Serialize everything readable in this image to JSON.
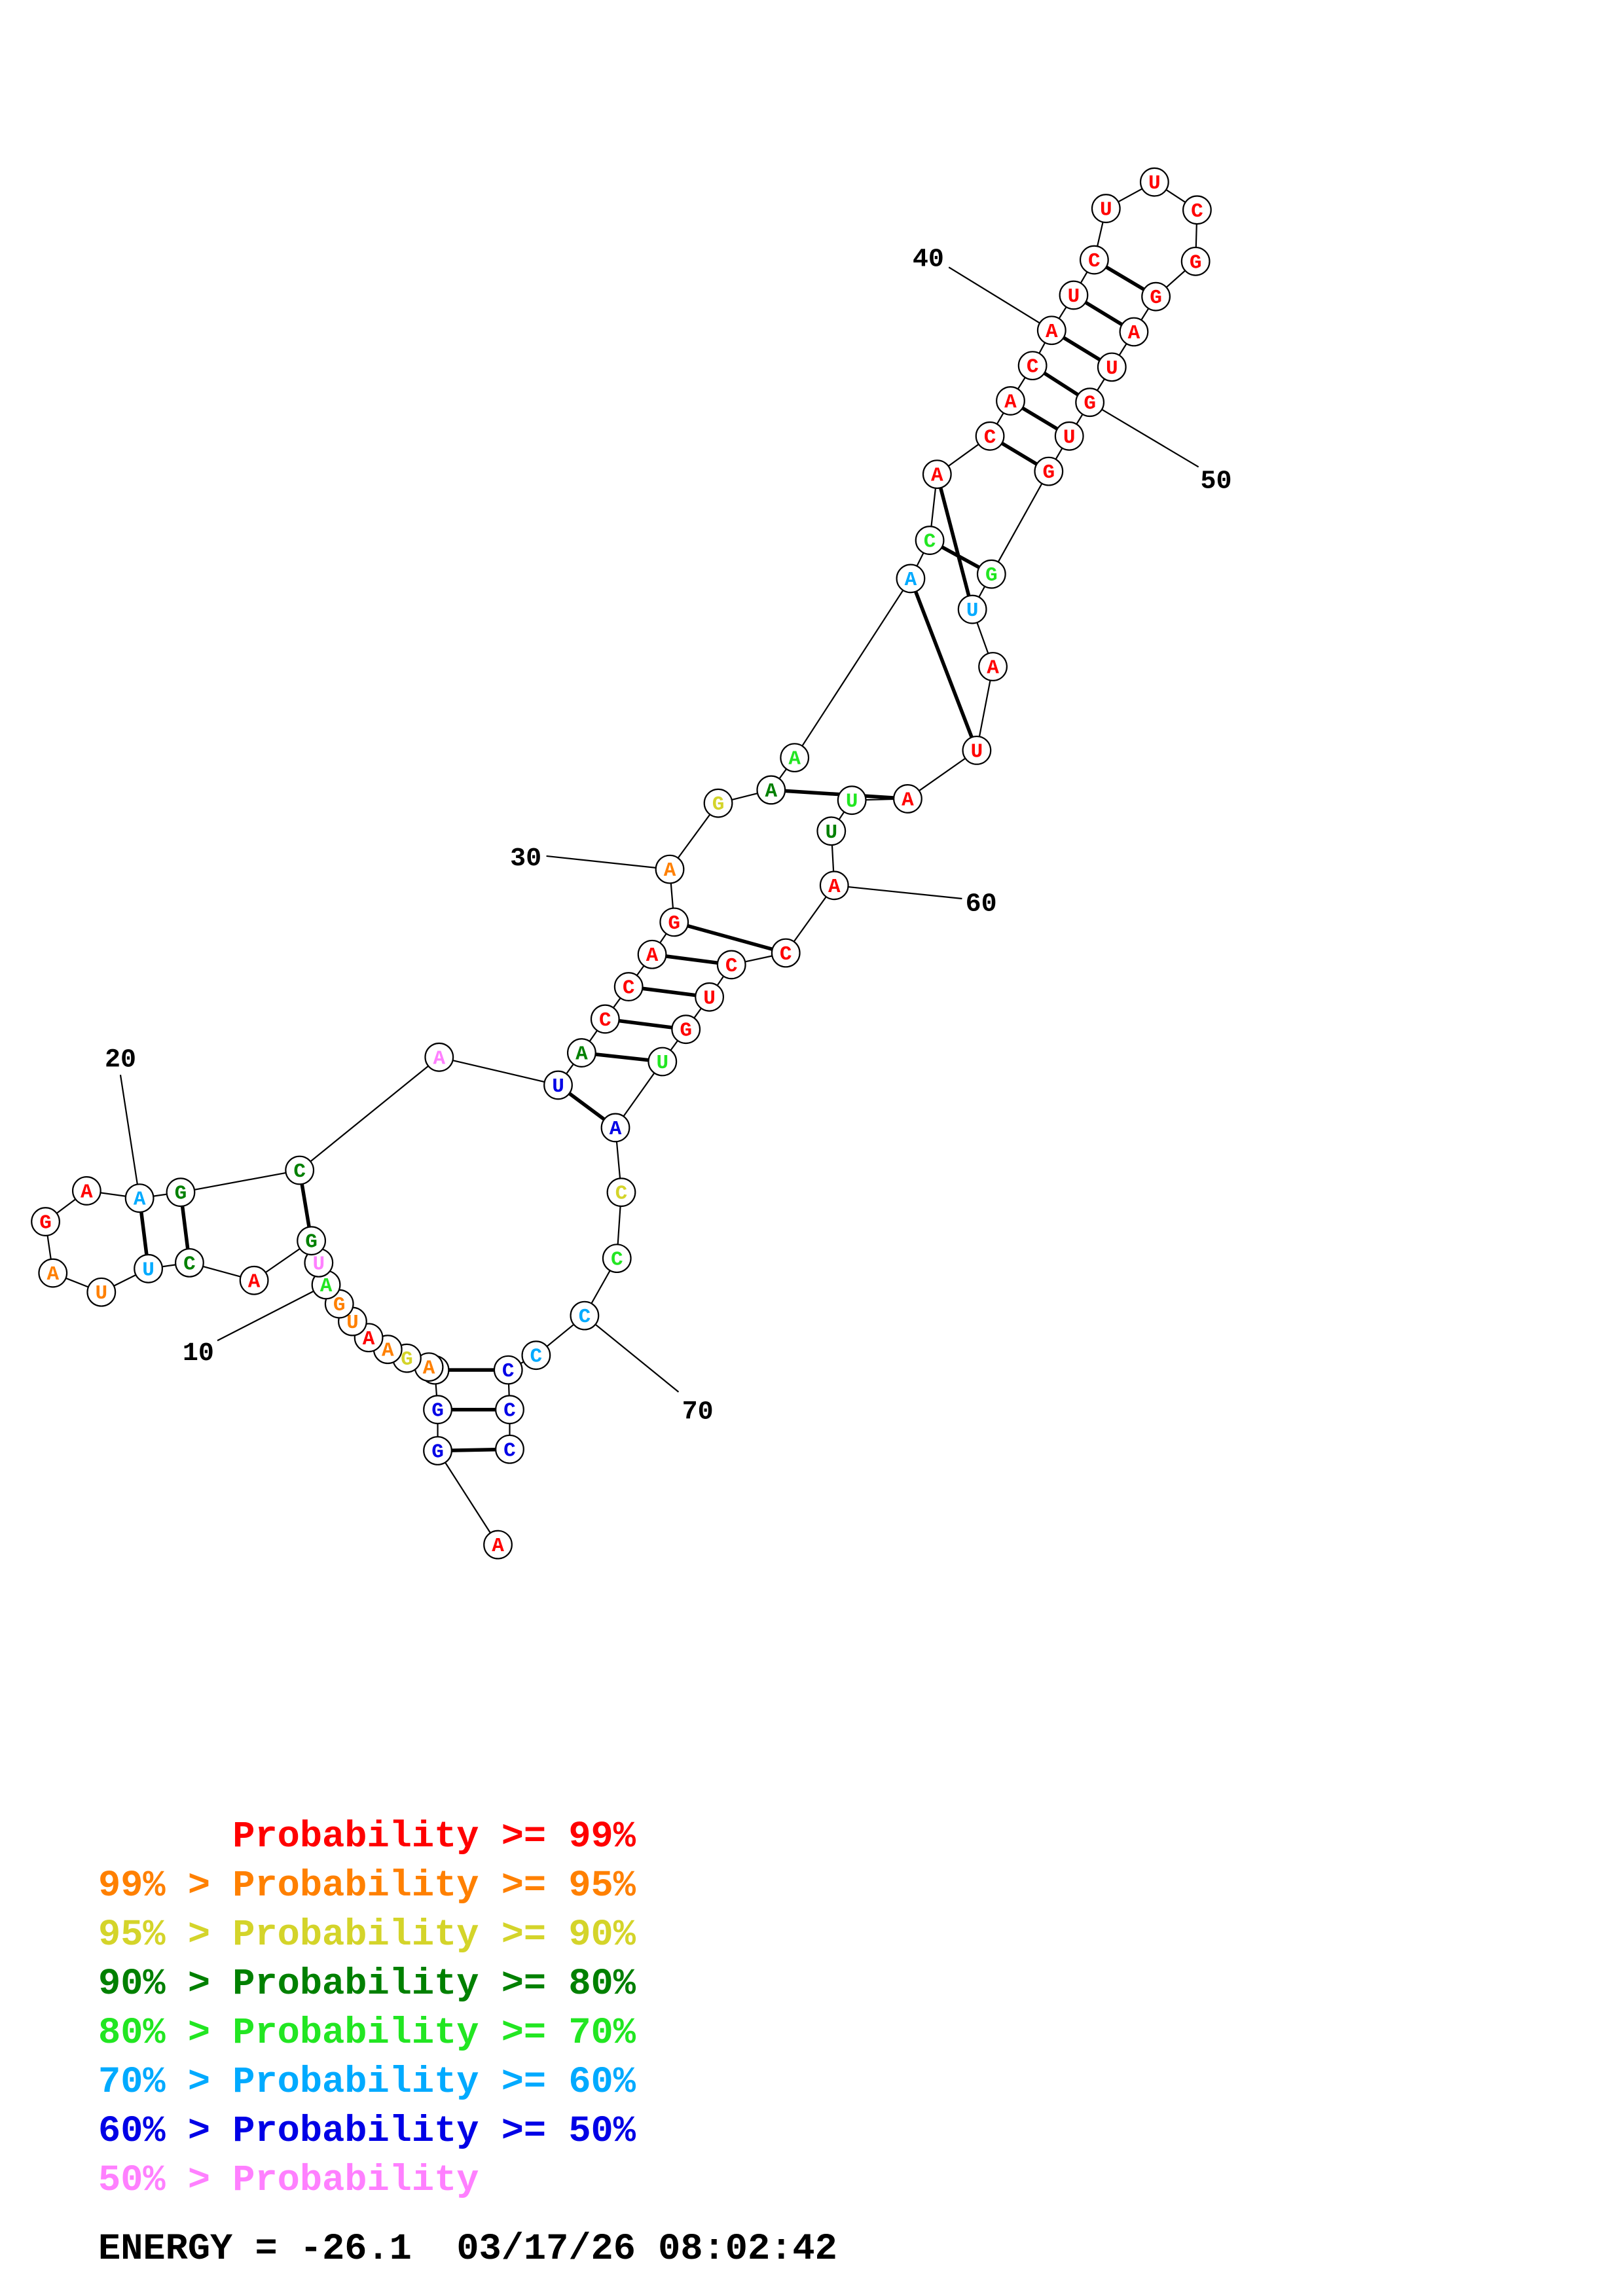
{
  "colors": {
    "p99": "#ff0000",
    "p95": "#ff8000",
    "p90": "#d4d42a",
    "p80": "#008000",
    "p70": "#22e622",
    "p60": "#00aaff",
    "p50": "#0000e6",
    "plow": "#ff80ff"
  },
  "nucleotides": [
    {
      "i": 1,
      "b": "A",
      "c": "p99"
    },
    {
      "i": 2,
      "b": "G",
      "c": "p50"
    },
    {
      "i": 3,
      "b": "G",
      "c": "p50"
    },
    {
      "i": 4,
      "b": "U",
      "c": "p50"
    },
    {
      "i": 5,
      "b": "A",
      "c": "p95"
    },
    {
      "i": 6,
      "b": "G",
      "c": "p90"
    },
    {
      "i": 7,
      "b": "A",
      "c": "p95"
    },
    {
      "i": 8,
      "b": "A",
      "c": "p99"
    },
    {
      "i": 9,
      "b": "U",
      "c": "p95"
    },
    {
      "i": 10,
      "b": "G",
      "c": "p95"
    },
    {
      "i": 11,
      "b": "A",
      "c": "p70"
    },
    {
      "i": 12,
      "b": "U",
      "c": "plow"
    },
    {
      "i": 13,
      "b": "G",
      "c": "p80"
    },
    {
      "i": 14,
      "b": "A",
      "c": "p99"
    },
    {
      "i": 15,
      "b": "C",
      "c": "p80"
    },
    {
      "i": 16,
      "b": "U",
      "c": "p60"
    },
    {
      "i": 17,
      "b": "U",
      "c": "p95"
    },
    {
      "i": 18,
      "b": "A",
      "c": "p95"
    },
    {
      "i": 19,
      "b": "G",
      "c": "p99"
    },
    {
      "i": 20,
      "b": "A",
      "c": "p99"
    },
    {
      "i": 21,
      "b": "A",
      "c": "p60"
    },
    {
      "i": 22,
      "b": "G",
      "c": "p80"
    },
    {
      "i": 23,
      "b": "C",
      "c": "p80"
    },
    {
      "i": 24,
      "b": "A",
      "c": "plow"
    },
    {
      "i": 25,
      "b": "U",
      "c": "p50"
    },
    {
      "i": 26,
      "b": "A",
      "c": "p80"
    },
    {
      "i": 27,
      "b": "C",
      "c": "p99"
    },
    {
      "i": 28,
      "b": "C",
      "c": "p99"
    },
    {
      "i": 29,
      "b": "A",
      "c": "p99"
    },
    {
      "i": 30,
      "b": "G",
      "c": "p99"
    },
    {
      "i": 31,
      "b": "A",
      "c": "p95"
    },
    {
      "i": 32,
      "b": "G",
      "c": "p90"
    },
    {
      "i": 33,
      "b": "A",
      "c": "p80"
    },
    {
      "i": 34,
      "b": "A",
      "c": "p70"
    },
    {
      "i": 35,
      "b": "A",
      "c": "p60"
    },
    {
      "i": 36,
      "b": "C",
      "c": "p70"
    },
    {
      "i": 37,
      "b": "A",
      "c": "p99"
    },
    {
      "i": 38,
      "b": "C",
      "c": "p99"
    },
    {
      "i": 39,
      "b": "A",
      "c": "p99"
    },
    {
      "i": 40,
      "b": "C",
      "c": "p99"
    },
    {
      "i": 41,
      "b": "A",
      "c": "p99"
    },
    {
      "i": 42,
      "b": "U",
      "c": "p99"
    },
    {
      "i": 43,
      "b": "C",
      "c": "p99"
    },
    {
      "i": 44,
      "b": "U",
      "c": "p99"
    },
    {
      "i": 45,
      "b": "U",
      "c": "p99"
    },
    {
      "i": 46,
      "b": "C",
      "c": "p99"
    },
    {
      "i": 47,
      "b": "G",
      "c": "p99"
    },
    {
      "i": 48,
      "b": "G",
      "c": "p99"
    },
    {
      "i": 49,
      "b": "A",
      "c": "p99"
    },
    {
      "i": 50,
      "b": "U",
      "c": "p99"
    },
    {
      "i": 51,
      "b": "G",
      "c": "p99"
    },
    {
      "i": 52,
      "b": "U",
      "c": "p99"
    },
    {
      "i": 53,
      "b": "G",
      "c": "p99"
    },
    {
      "i": 54,
      "b": "G",
      "c": "p70"
    },
    {
      "i": 55,
      "b": "U",
      "c": "p60"
    },
    {
      "i": 56,
      "b": "A",
      "c": "p99"
    },
    {
      "i": 57,
      "b": "U",
      "c": "p99"
    },
    {
      "i": 58,
      "b": "A",
      "c": "p99"
    },
    {
      "i": 59,
      "b": "U",
      "c": "p70"
    },
    {
      "i": 60,
      "b": "U",
      "c": "p80"
    },
    {
      "i": 61,
      "b": "A",
      "c": "p99"
    },
    {
      "i": 62,
      "b": "C",
      "c": "p99"
    },
    {
      "i": 63,
      "b": "C",
      "c": "p99"
    },
    {
      "i": 64,
      "b": "U",
      "c": "p99"
    },
    {
      "i": 65,
      "b": "G",
      "c": "p99"
    },
    {
      "i": 66,
      "b": "U",
      "c": "p70"
    },
    {
      "i": 67,
      "b": "A",
      "c": "p50"
    },
    {
      "i": 68,
      "b": "C",
      "c": "p90"
    },
    {
      "i": 69,
      "b": "C",
      "c": "p70"
    },
    {
      "i": 70,
      "b": "C",
      "c": "p60"
    },
    {
      "i": 71,
      "b": "C",
      "c": "p60"
    },
    {
      "i": 72,
      "b": "C",
      "c": "p50"
    },
    {
      "i": 73,
      "b": "C",
      "c": "p50"
    },
    {
      "i": 74,
      "b": "C",
      "c": "p50"
    }
  ],
  "pairs": [
    [
      2,
      74
    ],
    [
      3,
      73
    ],
    [
      4,
      72
    ],
    [
      13,
      23
    ],
    [
      16,
      21
    ],
    [
      22,
      15
    ],
    [
      25,
      67
    ],
    [
      26,
      66
    ],
    [
      27,
      65
    ],
    [
      28,
      64
    ],
    [
      29,
      63
    ],
    [
      30,
      62
    ],
    [
      35,
      57
    ],
    [
      33,
      58
    ],
    [
      36,
      54
    ],
    [
      37,
      55
    ],
    [
      38,
      53
    ],
    [
      39,
      52
    ],
    [
      40,
      51
    ],
    [
      41,
      50
    ],
    [
      42,
      49
    ],
    [
      43,
      48
    ]
  ],
  "position_labels": [
    {
      "text": "10",
      "at": 11
    },
    {
      "text": "20",
      "at": 21
    },
    {
      "text": "30",
      "at": 31
    },
    {
      "text": "40",
      "at": 41
    },
    {
      "text": "50",
      "at": 51
    },
    {
      "text": "60",
      "at": 61
    },
    {
      "text": "70",
      "at": 70
    }
  ],
  "legend": [
    {
      "prefix": "    ",
      "label": "Probability >= 99%",
      "color": "p99"
    },
    {
      "prefix": "99% > ",
      "label": "Probability >= 95%",
      "color": "p95"
    },
    {
      "prefix": "95% > ",
      "label": "Probability >= 90%",
      "color": "p90"
    },
    {
      "prefix": "90% > ",
      "label": "Probability >= 80%",
      "color": "p80"
    },
    {
      "prefix": "80% > ",
      "label": "Probability >= 70%",
      "color": "p70"
    },
    {
      "prefix": "70% > ",
      "label": "Probability >= 60%",
      "color": "p60"
    },
    {
      "prefix": "60% > ",
      "label": "Probability >= 50%",
      "color": "p50"
    },
    {
      "prefix": "50% > ",
      "label": "Probability",
      "color": "plow"
    }
  ],
  "footer": {
    "energy_label": "ENERGY = ",
    "energy_value": "-26.1",
    "timestamp": "03/17/26 08:02:42"
  }
}
